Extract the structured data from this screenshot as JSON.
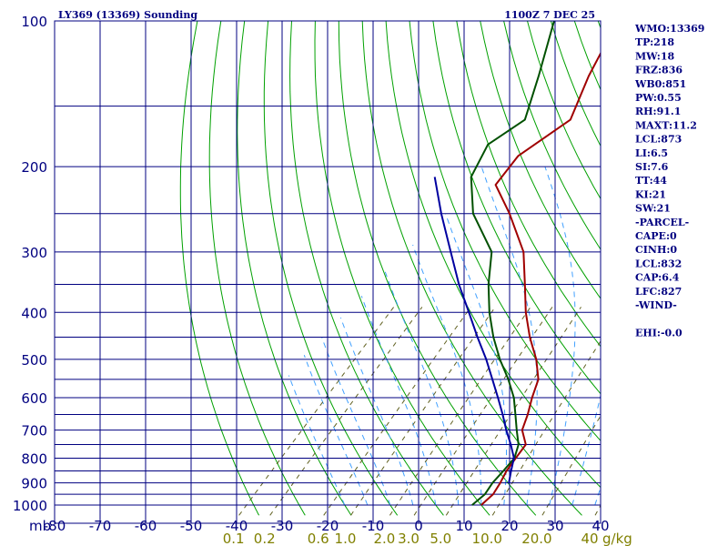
{
  "header": {
    "title": "LY369 (13369) Sounding",
    "time": "1100Z  7 DEC 25"
  },
  "stats": [
    "WMO:13369",
    "TP:218",
    "MW:18",
    "FRZ:836",
    "WB0:851",
    "PW:0.55",
    "RH:91.1",
    "MAXT:11.2",
    "LCL:873",
    "LI:6.5",
    "SI:7.6",
    "TT:44",
    "KI:21",
    "SW:21",
    "-PARCEL-",
    "CAPE:0",
    "CINH:0",
    "LCL:832",
    "CAP:6.4",
    "LFC:827",
    "-WIND-",
    "",
    "EHI:-0.0"
  ],
  "chart_data": {
    "type": "line",
    "title": "LY369 (13369) Sounding",
    "xlabel": "",
    "ylabel": "mb",
    "xlim": [
      -80,
      40
    ],
    "ylim": [
      1050,
      100
    ],
    "y_scale": "log",
    "pressure_ticks": [
      "100",
      "200",
      "300",
      "400",
      "500",
      "600",
      "700",
      "800",
      "900",
      "1000"
    ],
    "pressure_values": [
      100,
      200,
      300,
      400,
      500,
      600,
      700,
      800,
      900,
      1000
    ],
    "pressure_grid": [
      100,
      150,
      200,
      250,
      300,
      350,
      400,
      450,
      500,
      550,
      600,
      650,
      700,
      750,
      800,
      850,
      900,
      950,
      1000
    ],
    "temp_ticks": [
      "-80",
      "-70",
      "-60",
      "-50",
      "-40",
      "-30",
      "-20",
      "-10",
      "0",
      "10",
      "20",
      "30",
      "40"
    ],
    "temp_values": [
      -80,
      -70,
      -60,
      -50,
      -40,
      -30,
      -20,
      -10,
      0,
      10,
      20,
      30,
      40
    ],
    "mixing_ratio_ticks": [
      "0.1",
      "0.2",
      "0.6",
      "1.0",
      "2.0",
      "3.0",
      "5.0",
      "10.0",
      "20.0",
      "40"
    ],
    "mixing_ratio_values": [
      0.1,
      0.2,
      0.6,
      1.0,
      2.0,
      3.0,
      5.0,
      10.0,
      20.0,
      40.0
    ],
    "unit_pressure": "mb",
    "unit_mixing": "g/kg",
    "isotherm_spacing": 10,
    "grid": true,
    "series": [
      {
        "color": "#a00000",
        "points": [
          [
            1000,
            10.0
          ],
          [
            950,
            10.4
          ],
          [
            900,
            9.6
          ],
          [
            850,
            8.5
          ],
          [
            800,
            7.9
          ],
          [
            750,
            7.3
          ],
          [
            700,
            3.5
          ],
          [
            650,
            1.5
          ],
          [
            600,
            -1.0
          ],
          [
            550,
            -3.4
          ],
          [
            500,
            -8.0
          ],
          [
            450,
            -14.0
          ],
          [
            400,
            -20.0
          ],
          [
            350,
            -26.0
          ],
          [
            300,
            -33.0
          ],
          [
            250,
            -44.0
          ],
          [
            218,
            -53.0
          ],
          [
            190,
            -54.0
          ],
          [
            160,
            -50.0
          ],
          [
            130,
            -55.0
          ],
          [
            100,
            -60.0
          ]
        ]
      },
      {
        "color": "#005000",
        "points": [
          [
            1000,
            8.0
          ],
          [
            950,
            8.6
          ],
          [
            900,
            7.9
          ],
          [
            850,
            7.8
          ],
          [
            800,
            7.6
          ],
          [
            750,
            5.7
          ],
          [
            700,
            2.3
          ],
          [
            650,
            -1.2
          ],
          [
            600,
            -5.0
          ],
          [
            550,
            -10.0
          ],
          [
            500,
            -16.0
          ],
          [
            450,
            -22.0
          ],
          [
            400,
            -28.0
          ],
          [
            350,
            -34.0
          ],
          [
            300,
            -40.0
          ],
          [
            250,
            -52.0
          ],
          [
            210,
            -60.0
          ],
          [
            180,
            -63.0
          ],
          [
            160,
            -60.0
          ],
          [
            130,
            -66.0
          ],
          [
            100,
            -74.0
          ]
        ]
      },
      {
        "color": "#0000a0",
        "points": [
          [
            900,
            11.5
          ],
          [
            850,
            9.5
          ],
          [
            800,
            7.5
          ],
          [
            750,
            4.0
          ],
          [
            700,
            0.0
          ],
          [
            650,
            -4.0
          ],
          [
            600,
            -8.5
          ],
          [
            550,
            -13.5
          ],
          [
            500,
            -19.0
          ],
          [
            450,
            -25.5
          ],
          [
            400,
            -32.5
          ],
          [
            350,
            -40.5
          ],
          [
            300,
            -49.0
          ],
          [
            250,
            -59.0
          ],
          [
            210,
            -68.0
          ]
        ]
      }
    ]
  }
}
